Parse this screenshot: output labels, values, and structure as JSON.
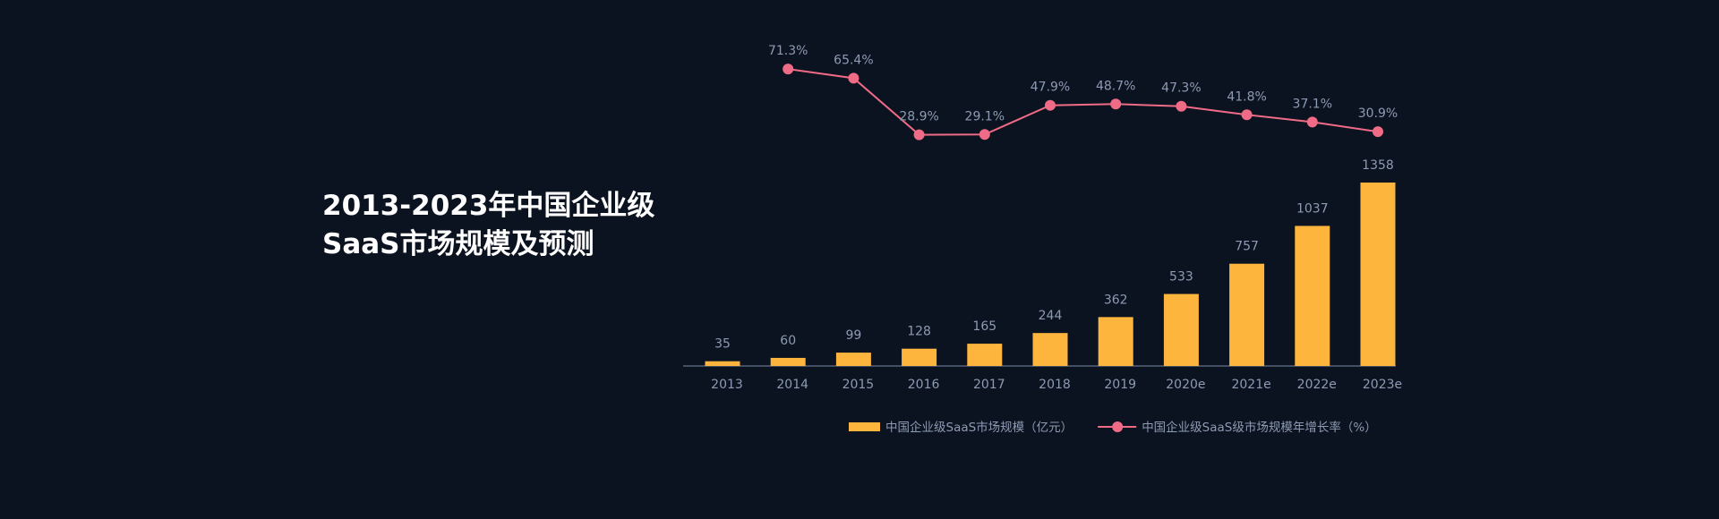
{
  "chart_data": {
    "type": "bar",
    "title": [
      "2013-2023年中国企业级",
      "SaaS市场规模及预测"
    ],
    "categories": [
      "2013",
      "2014",
      "2015",
      "2016",
      "2017",
      "2018",
      "2019",
      "2020e",
      "2021e",
      "2022e",
      "2023e"
    ],
    "series": [
      {
        "name": "中国企业级SaaS市场规模（亿元）",
        "type": "bar",
        "color": "#fdb53d",
        "values": [
          35,
          60,
          99,
          128,
          165,
          244,
          362,
          533,
          757,
          1037,
          1358
        ]
      },
      {
        "name": "中国企业级SaaS级市场规模年增长率（%）",
        "type": "line",
        "axis": "y2",
        "color": "#f06b86",
        "values": [
          null,
          71.3,
          65.4,
          28.9,
          29.1,
          47.9,
          48.7,
          47.3,
          41.8,
          37.1,
          30.9
        ],
        "value_labels": [
          null,
          "71.3%",
          "65.4%",
          "28.9%",
          "29.1%",
          "47.9%",
          "48.7%",
          "47.3%",
          "41.8%",
          "37.1%",
          "30.9%"
        ]
      }
    ]
  }
}
